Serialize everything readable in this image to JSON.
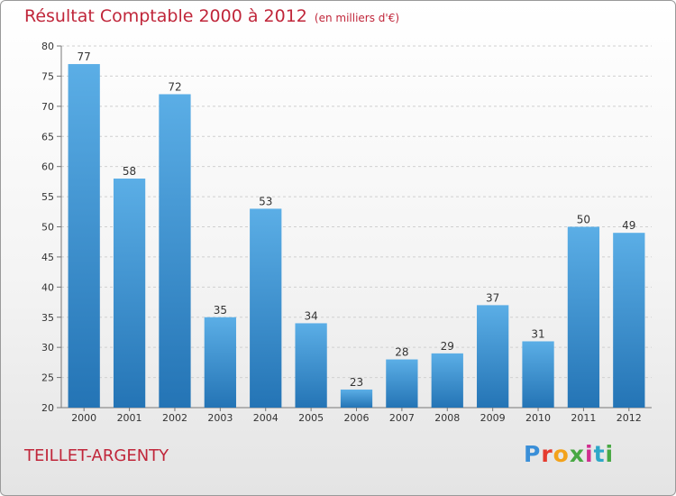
{
  "title": "Résultat Comptable 2000 à 2012",
  "subtitle": "(en milliers d'€)",
  "city": "TEILLET-ARGENTY",
  "logo": [
    "P",
    "r",
    "o",
    "x",
    "i",
    "t",
    "i"
  ],
  "colors": {
    "title": "#c0263a",
    "bar_top": "#5baee6",
    "bar_bottom": "#2474b5"
  },
  "chart_data": {
    "type": "bar",
    "title": "Résultat Comptable 2000 à 2012",
    "subtitle": "(en milliers d'€)",
    "xlabel": "",
    "ylabel": "",
    "categories": [
      "2000",
      "2001",
      "2002",
      "2003",
      "2004",
      "2005",
      "2006",
      "2007",
      "2008",
      "2009",
      "2010",
      "2011",
      "2012"
    ],
    "values": [
      77,
      58,
      72,
      35,
      53,
      34,
      23,
      28,
      29,
      37,
      31,
      50,
      49
    ],
    "ylim": [
      20,
      80
    ],
    "yticks": [
      20,
      25,
      30,
      35,
      40,
      45,
      50,
      55,
      60,
      65,
      70,
      75,
      80
    ],
    "grid": true
  }
}
